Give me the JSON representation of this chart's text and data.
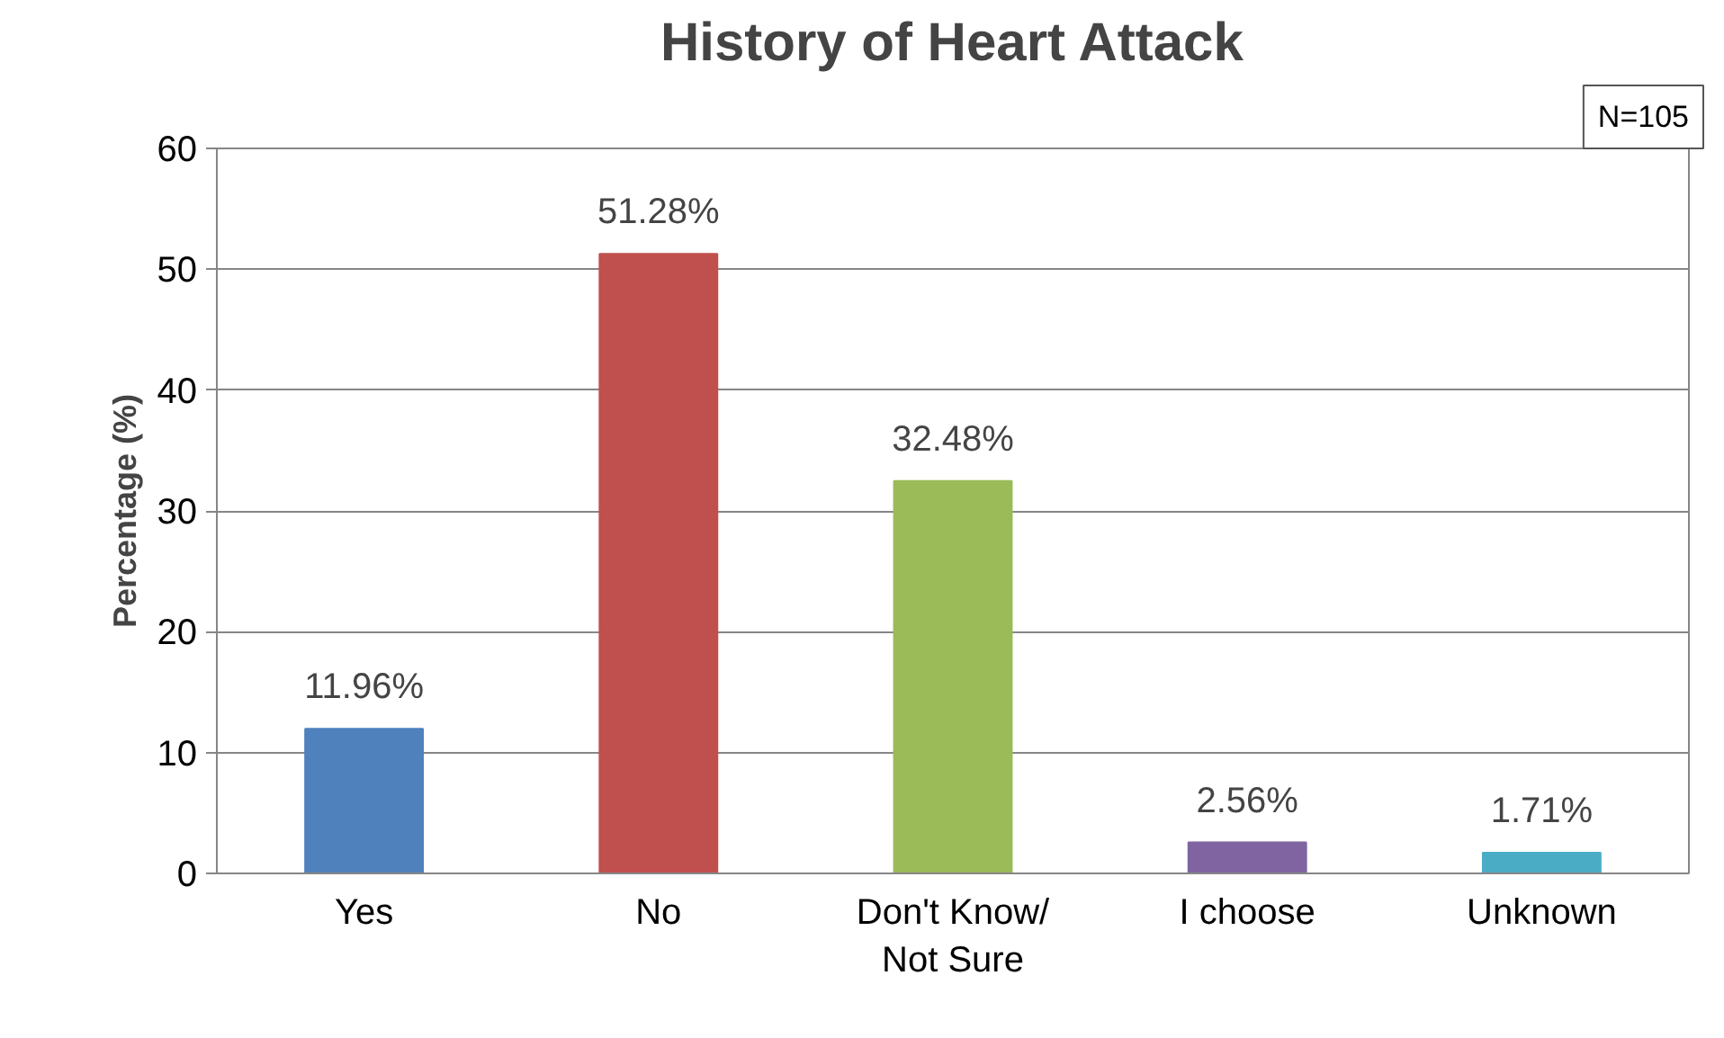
{
  "chart_data": {
    "type": "bar",
    "title": "History of Heart Attack",
    "ylabel": "Percentage (%)",
    "categories": [
      "Yes",
      "No",
      "Don't Know/\nNot Sure",
      "I choose",
      "Unknown"
    ],
    "values": [
      11.96,
      51.28,
      32.48,
      2.56,
      1.71
    ],
    "colors": [
      "#4f81bd",
      "#c0504d",
      "#9bbb59",
      "#8064a2",
      "#4bacc6"
    ],
    "value_labels": [
      "11.96%",
      "51.28%",
      "32.48%",
      "2.56%",
      "1.71%"
    ],
    "ylim": [
      0,
      60
    ],
    "yticks": [
      0,
      10,
      20,
      30,
      40,
      50,
      60
    ],
    "grid": "y",
    "annotations": [
      "N=105"
    ]
  }
}
